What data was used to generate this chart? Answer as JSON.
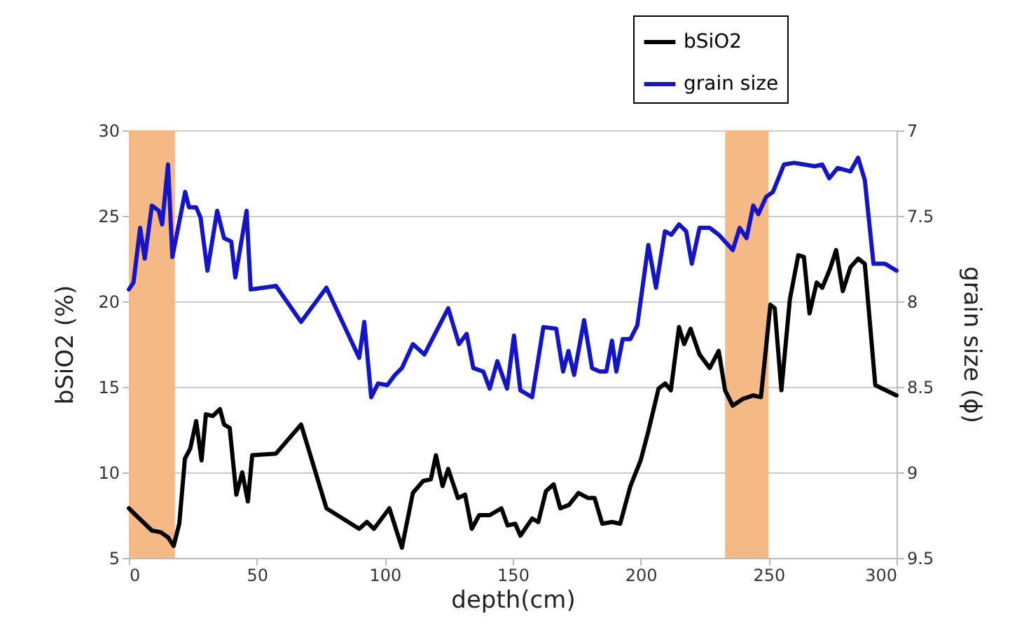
{
  "chart_data": {
    "type": "line",
    "xlabel": "depth(cm)",
    "ylabel": "bSiO2 (%)",
    "y2label": "grain size (ϕ)",
    "xlim": [
      0,
      300
    ],
    "xticks": [
      0,
      50,
      100,
      150,
      200,
      250,
      300
    ],
    "ylim": [
      5,
      30
    ],
    "yticks": [
      5,
      10,
      15,
      20,
      25,
      30
    ],
    "y2lim": [
      9.5,
      7
    ],
    "y2ticks": [
      7,
      7.5,
      8,
      8.5,
      9,
      9.5
    ],
    "grid": "y",
    "legend": "top right",
    "bands": [
      {
        "axis": "x",
        "from": 0,
        "to": 18,
        "color": "#f4b984"
      },
      {
        "axis": "x",
        "from": 233,
        "to": 250,
        "color": "#f4b984"
      }
    ],
    "series": [
      {
        "name": "bSiO2",
        "color": "#000000",
        "x": [
          0,
          2.7,
          5.5,
          9,
          12.5,
          15.3,
          17.5,
          19.7,
          21.9,
          24,
          26.3,
          28.4,
          30.1,
          32.8,
          35.6,
          37.2,
          39.4,
          42,
          44.3,
          46.5,
          48.2,
          57.5,
          67.3,
          77.2,
          90,
          93,
          95.8,
          101.8,
          106.7,
          111,
          115,
          118,
          120,
          122.6,
          124.8,
          128.6,
          131.4,
          134,
          136.9,
          141,
          145.6,
          148,
          151,
          153,
          157.6,
          160,
          163,
          166,
          168.6,
          172,
          175.7,
          179.5,
          182,
          185,
          188.8,
          192,
          196,
          200,
          203,
          207,
          209.6,
          211.8,
          215,
          217,
          219.5,
          223,
          227,
          230.5,
          233,
          236,
          240,
          244,
          247,
          249,
          250.7,
          252.4,
          255,
          258.3,
          261.6,
          263.8,
          266,
          268.8,
          271,
          274,
          276.4,
          279,
          282,
          285,
          287.6,
          291.7,
          300
        ],
        "values": [
          7.9,
          7.5,
          7.1,
          6.6,
          6.5,
          6.2,
          5.7,
          7.0,
          10.8,
          11.4,
          13.0,
          10.7,
          13.4,
          13.3,
          13.7,
          12.8,
          12.6,
          8.7,
          10.0,
          8.3,
          11.0,
          11.1,
          12.8,
          7.9,
          6.7,
          7.1,
          6.7,
          7.9,
          5.6,
          8.8,
          9.5,
          9.6,
          11.0,
          9.2,
          10.2,
          8.5,
          8.7,
          6.7,
          7.5,
          7.5,
          7.9,
          6.9,
          7.0,
          6.3,
          7.3,
          7.1,
          8.9,
          9.3,
          7.9,
          8.1,
          8.8,
          8.5,
          8.5,
          7.0,
          7.1,
          7.0,
          9.2,
          10.7,
          12.4,
          14.9,
          15.2,
          14.8,
          18.5,
          17.5,
          18.4,
          16.9,
          16.1,
          17.1,
          14.8,
          13.9,
          14.3,
          14.5,
          14.4,
          17.3,
          19.8,
          19.6,
          14.8,
          20.1,
          22.7,
          22.6,
          19.3,
          21.1,
          20.8,
          21.9,
          23.0,
          20.6,
          22.0,
          22.5,
          22.2,
          15.1,
          14.5
        ]
      },
      {
        "name": "grain size",
        "color": "#1414c8",
        "axis": "y2",
        "x": [
          0,
          1.8,
          4.4,
          6.2,
          9,
          11.7,
          13,
          15.3,
          17,
          22,
          23.5,
          26.3,
          28,
          30.7,
          34.5,
          37.2,
          40,
          41.6,
          46,
          47.6,
          57.5,
          67.3,
          77.2,
          90,
          92,
          94.7,
          97.4,
          101,
          104,
          106.7,
          111,
          115.5,
          121,
          124.8,
          129,
          132,
          134.6,
          138.5,
          141,
          144,
          147.8,
          150.5,
          153,
          157.6,
          162,
          167,
          169.7,
          171.8,
          174,
          177.9,
          181,
          184,
          186.6,
          188.8,
          190.5,
          193,
          196,
          198.7,
          203,
          206,
          209.5,
          212,
          215,
          217.8,
          220,
          223,
          227,
          230.5,
          236,
          238.7,
          241.4,
          244,
          246,
          249,
          251.7,
          256,
          260,
          264,
          268,
          271,
          273.7,
          277,
          282,
          285,
          287.6,
          291,
          295.5,
          300
        ],
        "values": [
          7.93,
          7.89,
          7.57,
          7.75,
          7.44,
          7.47,
          7.55,
          7.2,
          7.74,
          7.36,
          7.45,
          7.45,
          7.51,
          7.82,
          7.47,
          7.63,
          7.65,
          7.86,
          7.47,
          7.93,
          7.91,
          8.12,
          7.92,
          8.33,
          8.12,
          8.56,
          8.48,
          8.49,
          8.43,
          8.39,
          8.25,
          8.31,
          8.15,
          8.04,
          8.25,
          8.19,
          8.39,
          8.41,
          8.51,
          8.35,
          8.51,
          8.2,
          8.52,
          8.56,
          8.15,
          8.16,
          8.41,
          8.29,
          8.43,
          8.11,
          8.39,
          8.41,
          8.41,
          8.23,
          8.41,
          8.22,
          8.22,
          8.14,
          7.67,
          7.92,
          7.59,
          7.61,
          7.55,
          7.59,
          7.78,
          7.57,
          7.57,
          7.61,
          7.7,
          7.57,
          7.63,
          7.44,
          7.49,
          7.39,
          7.36,
          7.2,
          7.19,
          7.2,
          7.21,
          7.2,
          7.28,
          7.22,
          7.24,
          7.16,
          7.29,
          7.78,
          7.78,
          7.82
        ]
      }
    ]
  }
}
